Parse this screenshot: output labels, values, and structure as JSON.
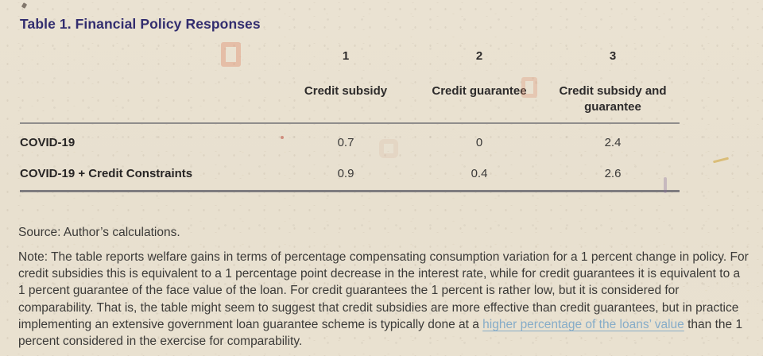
{
  "page": {
    "title": "Table 1. Financial Policy Responses"
  },
  "table": {
    "column_numbers": [
      "1",
      "2",
      "3"
    ],
    "column_headers": [
      "Credit subsidy",
      "Credit guarantee",
      "Credit subsidy and guarantee"
    ],
    "rows": [
      {
        "label": "COVID-19",
        "values": [
          "0.7",
          "0",
          "2.4"
        ]
      },
      {
        "label": "COVID-19 + Credit Constraints",
        "values": [
          "0.9",
          "0.4",
          "2.6"
        ]
      }
    ]
  },
  "source": "Source: Author’s calculations.",
  "note": {
    "prefix": "Note: The table reports welfare gains in terms of percentage compensating consumption variation for a 1 percent change in policy. For credit subsidies this is equivalent to a 1 percentage point decrease in the interest rate, while for credit guarantees it is equivalent to a 1 percent guarantee of the face value of the loan. For credit guarantees the 1 percent is rather low, but it is considered for comparability. That is, the table might seem to suggest that credit subsidies are more effective than credit guarantees, but in practice implementing an extensive government loan guarantee scheme is typically done at a ",
    "link_text": "higher percentage of the loans’ value",
    "suffix": " than the 1 percent considered in the exercise for comparability."
  },
  "colors": {
    "title_navy": "#322d6f",
    "link_blue": "#86acc8",
    "rule_gray": "#8f8d8c",
    "paper_beige": "#e9e1d0"
  }
}
